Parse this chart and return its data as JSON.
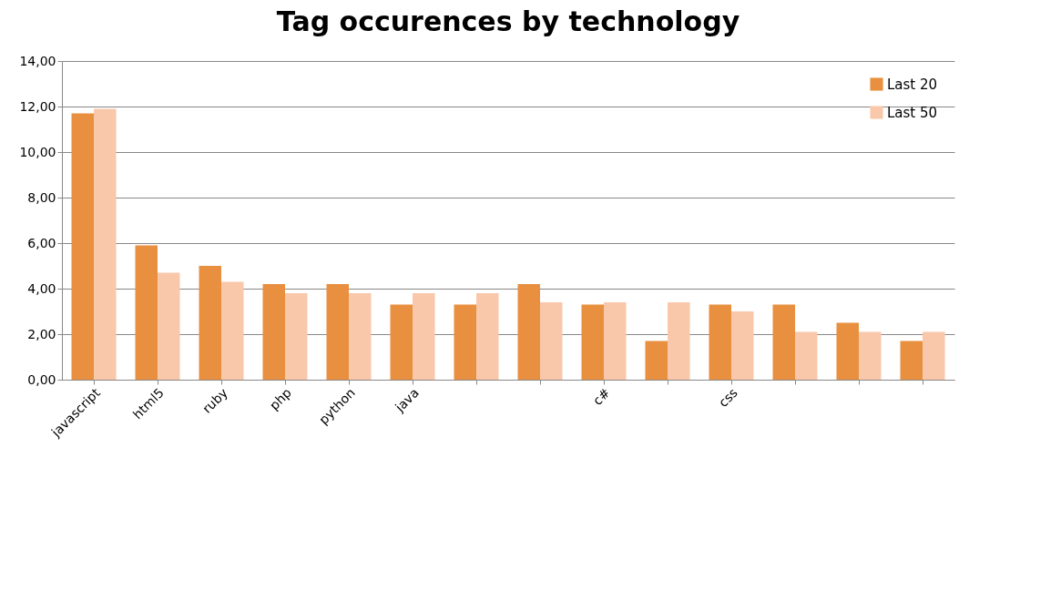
{
  "chart_data": {
    "type": "bar",
    "title": "Tag occurences by technology",
    "categories": [
      "javascript",
      "html5",
      "ruby",
      "php",
      "python",
      "java",
      null,
      null,
      "c#",
      null,
      "css",
      null,
      null,
      null
    ],
    "series": [
      {
        "name": "Last 20",
        "color": "#e8903f",
        "values": [
          11.7,
          5.9,
          5.0,
          4.2,
          4.2,
          3.3,
          3.3,
          4.2,
          3.3,
          1.7,
          3.3,
          3.3,
          2.5,
          1.7
        ]
      },
      {
        "name": "Last 50",
        "color": "#f9c8ab",
        "values": [
          11.9,
          4.7,
          4.3,
          3.8,
          3.8,
          3.8,
          3.8,
          3.4,
          3.4,
          3.4,
          3.0,
          2.1,
          2.1,
          2.1
        ]
      }
    ],
    "ylim": [
      0,
      14
    ],
    "yticks": [
      {
        "value": 0,
        "label": "0,00"
      },
      {
        "value": 2,
        "label": "2,00"
      },
      {
        "value": 4,
        "label": "4,00"
      },
      {
        "value": 6,
        "label": "6,00"
      },
      {
        "value": 8,
        "label": "8,00"
      },
      {
        "value": 10,
        "label": "10,00"
      },
      {
        "value": 12,
        "label": "12,00"
      },
      {
        "value": 14,
        "label": "14,00"
      }
    ],
    "grid": "y",
    "legend": "top right"
  }
}
